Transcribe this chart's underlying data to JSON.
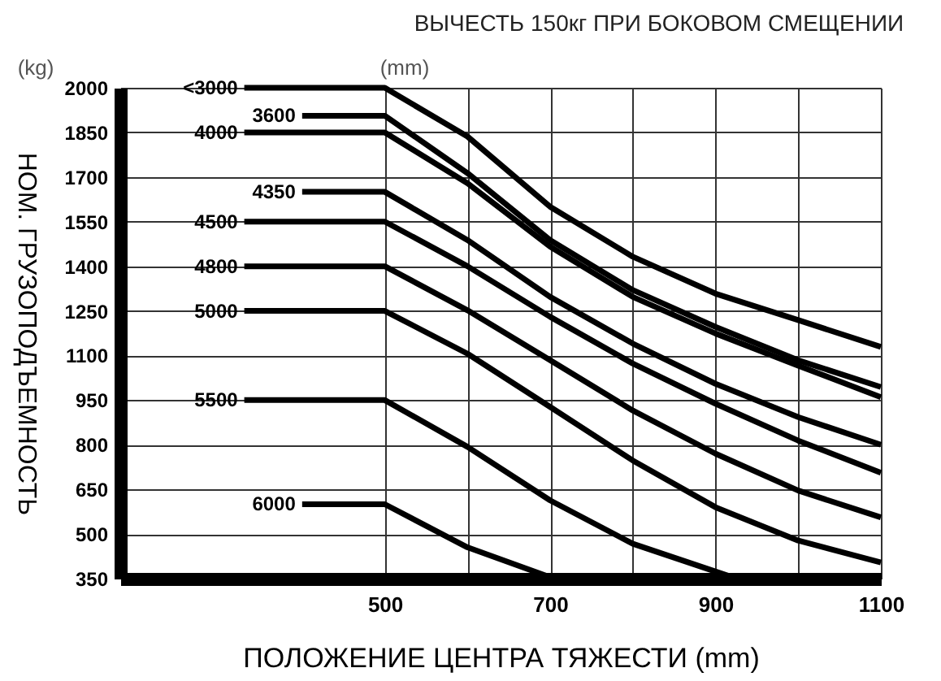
{
  "chart_data": {
    "type": "line",
    "title": "ВЫЧЕСТЬ 150кг ПРИ БОКОВОМ СМЕЩЕНИИ",
    "xlabel": "ПОЛОЖЕНИЕ ЦЕНТРА ТЯЖЕСТИ (mm)",
    "ylabel": "НОМ. ГРУЗОПОДЪЕМНОСТЬ",
    "legend_title": "(mm)",
    "annotations": [
      "(kg)"
    ],
    "series": [
      {
        "name": "<3000",
        "color": "#000000",
        "x": [
          330,
          500,
          600,
          700,
          800,
          900,
          1000,
          1100
        ],
        "values": [
          2000,
          2000,
          1836,
          1600,
          1432,
          1308,
          1219,
          1129
        ]
      },
      {
        "name": "3600",
        "color": "#000000",
        "x": [
          400,
          500,
          600,
          700,
          800,
          900,
          1000,
          1100
        ],
        "values": [
          1906,
          1906,
          1713,
          1488,
          1320,
          1196,
          1084,
          994
        ]
      },
      {
        "name": "4000",
        "color": "#000000",
        "x": [
          330,
          500,
          600,
          700,
          800,
          900,
          1000,
          1100
        ],
        "values": [
          1850,
          1850,
          1679,
          1466,
          1297,
          1174,
          1066,
          960
        ]
      },
      {
        "name": "4350",
        "color": "#000000",
        "x": [
          400,
          500,
          600,
          700,
          800,
          900,
          1000,
          1100
        ],
        "values": [
          1650,
          1650,
          1488,
          1297,
          1140,
          1005,
          893,
          800
        ]
      },
      {
        "name": "4500",
        "color": "#000000",
        "x": [
          330,
          500,
          600,
          700,
          800,
          900,
          1000,
          1100
        ],
        "values": [
          1550,
          1550,
          1400,
          1230,
          1073,
          938,
          814,
          706
        ]
      },
      {
        "name": "4800",
        "color": "#000000",
        "x": [
          330,
          500,
          600,
          700,
          800,
          900,
          1000,
          1100
        ],
        "values": [
          1400,
          1400,
          1252,
          1084,
          915,
          770,
          646,
          556
        ]
      },
      {
        "name": "5000",
        "color": "#000000",
        "x": [
          330,
          500,
          600,
          700,
          800,
          900,
          1000,
          1100
        ],
        "values": [
          1250,
          1250,
          1106,
          927,
          747,
          590,
          478,
          404
        ]
      },
      {
        "name": "5500",
        "color": "#000000",
        "x": [
          330,
          500,
          600,
          700,
          800,
          920
        ],
        "values": [
          950,
          950,
          793,
          613,
          467,
          355
        ]
      },
      {
        "name": "6000",
        "color": "#000000",
        "x": [
          400,
          500,
          600,
          700
        ],
        "values": [
          600,
          600,
          455,
          355
        ]
      }
    ],
    "xlim": [
      180,
      1100
    ],
    "xticks": [
      500,
      {
        "value": 600,
        "label": null
      },
      700,
      {
        "value": 800,
        "label": null
      },
      900,
      {
        "value": 1000,
        "label": null
      },
      1100
    ],
    "ylim": [
      350,
      2000
    ],
    "yticks": [
      350,
      500,
      650,
      800,
      950,
      1100,
      1250,
      1400,
      1550,
      1700,
      1850,
      2000
    ],
    "grid": true,
    "legend": false,
    "marker": "none",
    "line_style": "solid"
  }
}
